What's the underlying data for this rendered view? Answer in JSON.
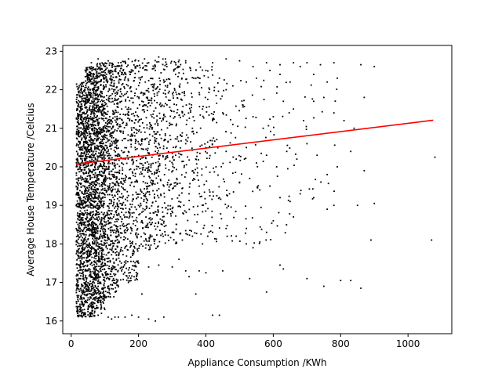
{
  "chart_data": {
    "type": "scatter",
    "title": "",
    "xlabel": "Appliance Consumption /KWh",
    "ylabel": "Average House Temperature /Celcius",
    "xlim": [
      -25,
      1130
    ],
    "ylim": [
      15.67,
      23.15
    ],
    "xticks": [
      0,
      200,
      400,
      600,
      800,
      1000
    ],
    "yticks": [
      16,
      17,
      18,
      19,
      20,
      21,
      22,
      23
    ],
    "xtick_labels": [
      "0",
      "200",
      "400",
      "600",
      "800",
      "1000"
    ],
    "ytick_labels": [
      "16",
      "17",
      "18",
      "19",
      "20",
      "21",
      "22",
      "23"
    ],
    "grid": false,
    "legend": "none",
    "point_color": "#000000",
    "trend_color": "#ff0000",
    "series": [
      {
        "kind": "points",
        "points": [
          [
            20,
            16.2
          ],
          [
            30,
            16.15
          ],
          [
            40,
            16.2
          ],
          [
            50,
            16.3
          ],
          [
            60,
            16.2
          ],
          [
            70,
            16.25
          ],
          [
            80,
            16.15
          ],
          [
            90,
            16.2
          ],
          [
            100,
            16.3
          ],
          [
            110,
            16.1
          ],
          [
            120,
            16.05
          ],
          [
            130,
            16.1
          ],
          [
            140,
            16.1
          ],
          [
            160,
            16.1
          ],
          [
            180,
            16.15
          ],
          [
            200,
            16.1
          ],
          [
            230,
            16.05
          ],
          [
            250,
            16.0
          ],
          [
            275,
            16.1
          ],
          [
            420,
            16.15
          ],
          [
            440,
            16.15
          ],
          [
            20,
            17.2
          ],
          [
            35,
            17.1
          ],
          [
            45,
            17.3
          ],
          [
            60,
            17.5
          ],
          [
            75,
            17.2
          ],
          [
            90,
            17.4
          ],
          [
            105,
            17.1
          ],
          [
            130,
            17.4
          ],
          [
            150,
            17.3
          ],
          [
            170,
            17.0
          ],
          [
            200,
            17.5
          ],
          [
            230,
            17.4
          ],
          [
            260,
            17.45
          ],
          [
            300,
            17.4
          ],
          [
            320,
            17.6
          ],
          [
            340,
            17.3
          ],
          [
            350,
            17.15
          ],
          [
            380,
            17.3
          ],
          [
            400,
            17.25
          ],
          [
            450,
            17.3
          ],
          [
            530,
            17.1
          ],
          [
            620,
            17.45
          ],
          [
            630,
            17.35
          ],
          [
            700,
            17.1
          ],
          [
            750,
            16.9
          ],
          [
            800,
            17.05
          ],
          [
            830,
            17.05
          ],
          [
            860,
            16.85
          ],
          [
            210,
            16.7
          ],
          [
            370,
            16.7
          ],
          [
            580,
            16.75
          ],
          [
            20,
            18.3
          ],
          [
            30,
            18.1
          ],
          [
            50,
            18.4
          ],
          [
            70,
            18.0
          ],
          [
            85,
            18.2
          ],
          [
            110,
            18.6
          ],
          [
            140,
            18.3
          ],
          [
            160,
            18.7
          ],
          [
            180,
            18.4
          ],
          [
            210,
            18.6
          ],
          [
            240,
            18.2
          ],
          [
            270,
            18.5
          ],
          [
            300,
            18.3
          ],
          [
            330,
            18.1
          ],
          [
            360,
            18.2
          ],
          [
            390,
            18.0
          ],
          [
            420,
            18.3
          ],
          [
            460,
            18.4
          ],
          [
            490,
            18.2
          ],
          [
            520,
            18.0
          ],
          [
            540,
            17.9
          ],
          [
            560,
            18.05
          ],
          [
            580,
            18.3
          ],
          [
            600,
            18.6
          ],
          [
            660,
            18.7
          ],
          [
            760,
            18.9
          ],
          [
            890,
            18.1
          ],
          [
            1070,
            18.1
          ],
          [
            25,
            19.2
          ],
          [
            40,
            19.5
          ],
          [
            60,
            19.0
          ],
          [
            90,
            19.4
          ],
          [
            120,
            19.1
          ],
          [
            150,
            19.3
          ],
          [
            180,
            19.6
          ],
          [
            200,
            19.0
          ],
          [
            230,
            19.5
          ],
          [
            260,
            19.2
          ],
          [
            290,
            19.4
          ],
          [
            320,
            19.1
          ],
          [
            350,
            19.3
          ],
          [
            380,
            19.5
          ],
          [
            410,
            19.4
          ],
          [
            440,
            19.2
          ],
          [
            470,
            19.3
          ],
          [
            500,
            19.6
          ],
          [
            530,
            19.7
          ],
          [
            560,
            19.4
          ],
          [
            590,
            19.5
          ],
          [
            620,
            19.2
          ],
          [
            650,
            19.1
          ],
          [
            680,
            19.3
          ],
          [
            720,
            19.2
          ],
          [
            780,
            19.0
          ],
          [
            850,
            19.0
          ],
          [
            900,
            19.05
          ],
          [
            30,
            20.1
          ],
          [
            50,
            20.4
          ],
          [
            70,
            20.0
          ],
          [
            100,
            20.3
          ],
          [
            130,
            20.6
          ],
          [
            160,
            20.2
          ],
          [
            190,
            20.5
          ],
          [
            220,
            20.1
          ],
          [
            250,
            20.4
          ],
          [
            280,
            20.7
          ],
          [
            310,
            20.3
          ],
          [
            340,
            20.6
          ],
          [
            370,
            20.2
          ],
          [
            400,
            20.5
          ],
          [
            430,
            20.0
          ],
          [
            460,
            20.4
          ],
          [
            490,
            20.2
          ],
          [
            520,
            20.5
          ],
          [
            550,
            20.1
          ],
          [
            580,
            20.3
          ],
          [
            610,
            20.0
          ],
          [
            640,
            20.4
          ],
          [
            670,
            20.2
          ],
          [
            700,
            20.6
          ],
          [
            730,
            20.3
          ],
          [
            760,
            19.8
          ],
          [
            790,
            20.0
          ],
          [
            830,
            20.4
          ],
          [
            870,
            19.9
          ],
          [
            1080,
            20.25
          ],
          [
            20,
            21.3
          ],
          [
            40,
            21.6
          ],
          [
            60,
            21.1
          ],
          [
            90,
            21.4
          ],
          [
            120,
            21.0
          ],
          [
            150,
            21.5
          ],
          [
            180,
            21.2
          ],
          [
            210,
            21.7
          ],
          [
            240,
            21.3
          ],
          [
            270,
            21.6
          ],
          [
            300,
            21.1
          ],
          [
            330,
            21.4
          ],
          [
            360,
            21.0
          ],
          [
            390,
            21.5
          ],
          [
            420,
            21.2
          ],
          [
            450,
            21.4
          ],
          [
            480,
            21.1
          ],
          [
            510,
            21.6
          ],
          [
            540,
            21.3
          ],
          [
            570,
            21.0
          ],
          [
            600,
            21.3
          ],
          [
            630,
            21.7
          ],
          [
            660,
            21.5
          ],
          [
            690,
            21.2
          ],
          [
            720,
            21.7
          ],
          [
            750,
            21.8
          ],
          [
            780,
            21.4
          ],
          [
            810,
            21.2
          ],
          [
            840,
            21.0
          ],
          [
            30,
            22.1
          ],
          [
            50,
            22.4
          ],
          [
            70,
            22.2
          ],
          [
            100,
            22.5
          ],
          [
            130,
            22.0
          ],
          [
            160,
            22.3
          ],
          [
            190,
            22.6
          ],
          [
            220,
            22.2
          ],
          [
            250,
            22.5
          ],
          [
            280,
            22.1
          ],
          [
            310,
            22.4
          ],
          [
            340,
            22.7
          ],
          [
            370,
            22.3
          ],
          [
            400,
            22.5
          ],
          [
            440,
            22.3
          ],
          [
            480,
            22.1
          ],
          [
            520,
            22.2
          ],
          [
            550,
            22.3
          ],
          [
            590,
            22.5
          ],
          [
            620,
            22.4
          ],
          [
            650,
            22.2
          ],
          [
            680,
            22.6
          ],
          [
            720,
            22.4
          ],
          [
            760,
            22.2
          ],
          [
            790,
            22.3
          ],
          [
            860,
            22.65
          ],
          [
            870,
            21.8
          ],
          [
            900,
            22.6
          ],
          [
            60,
            22.7
          ],
          [
            80,
            22.8
          ],
          [
            110,
            22.75
          ],
          [
            140,
            22.7
          ],
          [
            170,
            22.8
          ],
          [
            200,
            22.75
          ],
          [
            230,
            22.7
          ],
          [
            260,
            22.85
          ],
          [
            280,
            22.8
          ],
          [
            310,
            22.7
          ],
          [
            340,
            22.75
          ],
          [
            380,
            22.7
          ],
          [
            420,
            22.7
          ],
          [
            460,
            22.8
          ],
          [
            500,
            22.75
          ],
          [
            540,
            22.6
          ],
          [
            580,
            22.7
          ],
          [
            620,
            22.65
          ],
          [
            660,
            22.7
          ],
          [
            700,
            22.7
          ],
          [
            740,
            22.65
          ],
          [
            780,
            22.7
          ]
        ]
      },
      {
        "kind": "dense-band",
        "ranges": [
          {
            "x_range": [
              15,
              40
            ],
            "y_range": [
              16.1,
              22.2
            ],
            "count": 650
          },
          {
            "x_range": [
              40,
              70
            ],
            "y_range": [
              16.1,
              22.6
            ],
            "count": 900
          },
          {
            "x_range": [
              70,
              100
            ],
            "y_range": [
              16.3,
              22.7
            ],
            "count": 800
          },
          {
            "x_range": [
              100,
              140
            ],
            "y_range": [
              16.6,
              22.7
            ],
            "count": 600
          },
          {
            "x_range": [
              140,
              200
            ],
            "y_range": [
              17.0,
              22.8
            ],
            "count": 450
          },
          {
            "x_range": [
              200,
              260
            ],
            "y_range": [
              17.8,
              22.8
            ],
            "count": 350
          },
          {
            "x_range": [
              260,
              330
            ],
            "y_range": [
              18.0,
              22.8
            ],
            "count": 260
          },
          {
            "x_range": [
              330,
              420
            ],
            "y_range": [
              18.2,
              22.6
            ],
            "count": 170
          },
          {
            "x_range": [
              420,
              520
            ],
            "y_range": [
              18.0,
              22.5
            ],
            "count": 90
          },
          {
            "x_range": [
              520,
              650
            ],
            "y_range": [
              17.9,
              22.3
            ],
            "count": 45
          },
          {
            "x_range": [
              650,
              800
            ],
            "y_range": [
              18.8,
              22.2
            ],
            "count": 20
          }
        ]
      },
      {
        "kind": "trend-line",
        "x": [
          15,
          1075
        ],
        "y": [
          20.07,
          21.21
        ]
      }
    ]
  }
}
